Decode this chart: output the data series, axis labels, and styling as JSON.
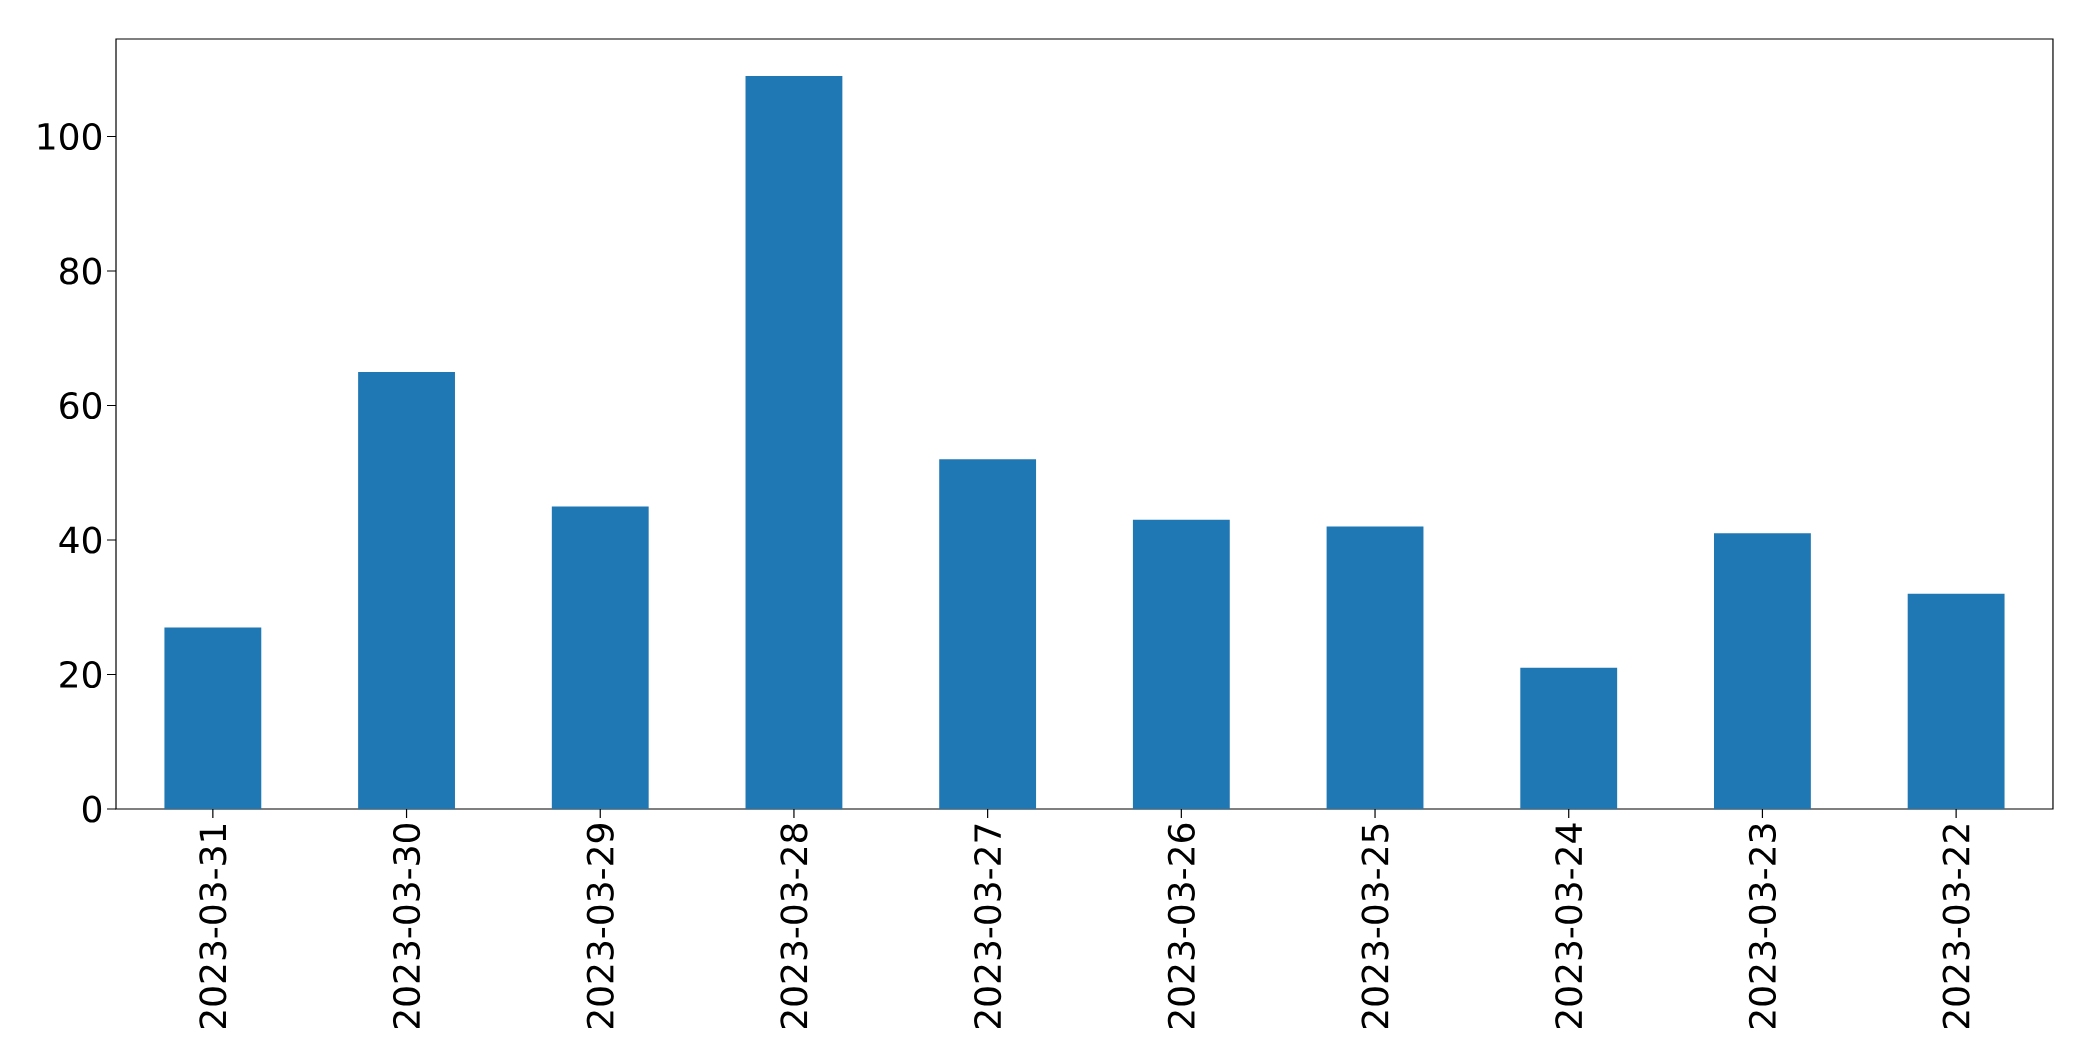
{
  "chart_data": {
    "type": "bar",
    "categories": [
      "2023-03-31",
      "2023-03-30",
      "2023-03-29",
      "2023-03-28",
      "2023-03-27",
      "2023-03-26",
      "2023-03-25",
      "2023-03-24",
      "2023-03-23",
      "2023-03-22"
    ],
    "values": [
      27,
      65,
      45,
      109,
      52,
      43,
      42,
      21,
      41,
      32
    ],
    "color": "#1f77b4",
    "ylim": [
      0,
      114.5
    ],
    "yticks": [
      0,
      20,
      40,
      60,
      80,
      100
    ]
  }
}
